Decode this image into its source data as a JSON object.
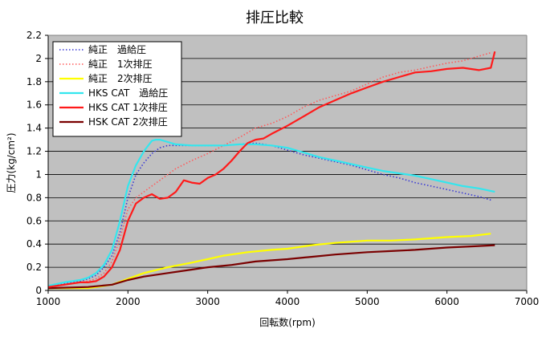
{
  "chart_data": {
    "type": "line",
    "title": "排圧比較",
    "xlabel": "回転数(rpm)",
    "ylabel": "圧力(kg/cm²)",
    "xlim": [
      1000,
      7000
    ],
    "ylim": [
      0,
      2.2
    ],
    "xticks": [
      1000,
      2000,
      3000,
      4000,
      5000,
      6000,
      7000
    ],
    "yticks": [
      0,
      0.2,
      0.4,
      0.6,
      0.8,
      1,
      1.2,
      1.4,
      1.6,
      1.8,
      2,
      2.2
    ],
    "ytick_labels": [
      "0",
      "0.2",
      "0.4",
      "0.6",
      "0.8",
      "1",
      "1.2",
      "1.4",
      "1.6",
      "1.8",
      "2",
      "2.2"
    ],
    "grid": "horizontal",
    "plot_background": "#c0c0c0",
    "legend_position": "top-left",
    "series": [
      {
        "name": "純正　過給圧",
        "color": "#3a3ad6",
        "style": "dotted",
        "x": [
          1000,
          1200,
          1400,
          1500,
          1600,
          1700,
          1800,
          1900,
          2000,
          2100,
          2200,
          2300,
          2400,
          2500,
          2600,
          2800,
          3000,
          3200,
          3400,
          3600,
          3800,
          4000,
          4200,
          4400,
          4600,
          4800,
          5000,
          5200,
          5400,
          5600,
          5800,
          6000,
          6200,
          6400,
          6550
        ],
        "y": [
          0.03,
          0.06,
          0.08,
          0.1,
          0.13,
          0.2,
          0.3,
          0.5,
          0.8,
          1.0,
          1.1,
          1.18,
          1.23,
          1.25,
          1.25,
          1.25,
          1.25,
          1.25,
          1.26,
          1.27,
          1.25,
          1.21,
          1.17,
          1.14,
          1.11,
          1.08,
          1.04,
          1.0,
          0.97,
          0.93,
          0.9,
          0.87,
          0.84,
          0.81,
          0.78
        ]
      },
      {
        "name": "純正　1次排圧",
        "color": "#ff5a5a",
        "style": "dotted",
        "x": [
          1000,
          1200,
          1400,
          1500,
          1600,
          1700,
          1800,
          1900,
          2000,
          2100,
          2200,
          2300,
          2400,
          2500,
          2600,
          2800,
          3000,
          3200,
          3400,
          3600,
          3800,
          4000,
          4200,
          4400,
          4600,
          4800,
          5000,
          5200,
          5400,
          5600,
          5800,
          6000,
          6200,
          6400,
          6550
        ],
        "y": [
          0.03,
          0.05,
          0.07,
          0.08,
          0.1,
          0.15,
          0.25,
          0.45,
          0.7,
          0.8,
          0.85,
          0.9,
          0.95,
          1.0,
          1.05,
          1.12,
          1.18,
          1.25,
          1.32,
          1.4,
          1.44,
          1.5,
          1.58,
          1.64,
          1.68,
          1.72,
          1.78,
          1.84,
          1.88,
          1.9,
          1.93,
          1.96,
          1.98,
          2.02,
          2.05
        ]
      },
      {
        "name": "純正　2次排圧",
        "color": "#ffff00",
        "style": "solid",
        "x": [
          1000,
          1500,
          1800,
          2000,
          2200,
          2500,
          2800,
          3000,
          3200,
          3500,
          3800,
          4000,
          4300,
          4600,
          5000,
          5300,
          5600,
          6000,
          6300,
          6550
        ],
        "y": [
          0.02,
          0.02,
          0.05,
          0.1,
          0.15,
          0.2,
          0.24,
          0.27,
          0.3,
          0.33,
          0.35,
          0.36,
          0.39,
          0.41,
          0.43,
          0.43,
          0.44,
          0.46,
          0.47,
          0.49
        ]
      },
      {
        "name": "HKS CAT　過給圧",
        "color": "#33e6ee",
        "style": "solid",
        "x": [
          1000,
          1200,
          1400,
          1500,
          1600,
          1700,
          1800,
          1900,
          2000,
          2100,
          2200,
          2300,
          2350,
          2400,
          2500,
          2600,
          2800,
          3000,
          3200,
          3400,
          3600,
          3800,
          4000,
          4200,
          4400,
          4600,
          4800,
          5000,
          5200,
          5400,
          5600,
          5800,
          6000,
          6200,
          6400,
          6600
        ],
        "y": [
          0.04,
          0.07,
          0.09,
          0.11,
          0.15,
          0.22,
          0.35,
          0.6,
          0.9,
          1.08,
          1.2,
          1.29,
          1.3,
          1.3,
          1.28,
          1.26,
          1.25,
          1.25,
          1.25,
          1.26,
          1.26,
          1.25,
          1.23,
          1.19,
          1.15,
          1.12,
          1.09,
          1.06,
          1.03,
          1.01,
          0.99,
          0.96,
          0.93,
          0.9,
          0.88,
          0.85
        ]
      },
      {
        "name": "HKS CAT 1次排圧",
        "color": "#ff1a1a",
        "style": "solid",
        "x": [
          1000,
          1200,
          1400,
          1500,
          1600,
          1700,
          1800,
          1900,
          2000,
          2100,
          2200,
          2300,
          2400,
          2500,
          2600,
          2700,
          2800,
          2900,
          3000,
          3100,
          3200,
          3300,
          3400,
          3500,
          3600,
          3700,
          3800,
          4000,
          4200,
          4400,
          4600,
          4800,
          5000,
          5200,
          5400,
          5600,
          5800,
          6000,
          6200,
          6400,
          6550,
          6600
        ],
        "y": [
          0.03,
          0.05,
          0.07,
          0.07,
          0.08,
          0.12,
          0.2,
          0.35,
          0.6,
          0.75,
          0.8,
          0.83,
          0.79,
          0.8,
          0.85,
          0.95,
          0.93,
          0.92,
          0.97,
          1.0,
          1.05,
          1.12,
          1.2,
          1.27,
          1.3,
          1.31,
          1.35,
          1.42,
          1.5,
          1.58,
          1.64,
          1.7,
          1.75,
          1.8,
          1.84,
          1.88,
          1.89,
          1.91,
          1.92,
          1.9,
          1.92,
          2.06
        ]
      },
      {
        "name": "HSK CAT 2次排圧",
        "color": "#7a0000",
        "style": "solid",
        "x": [
          1000,
          1500,
          1800,
          2000,
          2200,
          2500,
          2800,
          3000,
          3300,
          3600,
          4000,
          4300,
          4600,
          5000,
          5300,
          5600,
          6000,
          6300,
          6600
        ],
        "y": [
          0.02,
          0.03,
          0.05,
          0.09,
          0.12,
          0.15,
          0.18,
          0.2,
          0.22,
          0.25,
          0.27,
          0.29,
          0.31,
          0.33,
          0.34,
          0.35,
          0.37,
          0.38,
          0.39
        ]
      }
    ]
  }
}
